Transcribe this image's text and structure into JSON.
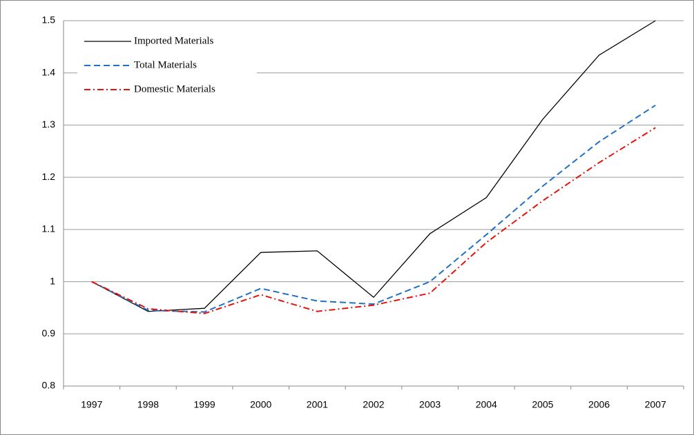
{
  "chart_data": {
    "type": "line",
    "categories": [
      "1997",
      "1998",
      "1999",
      "2000",
      "2001",
      "2002",
      "2003",
      "2004",
      "2005",
      "2006",
      "2007"
    ],
    "series": [
      {
        "name": "Imported Materials",
        "color": "#000000",
        "style": "solid",
        "values": [
          1.0,
          0.943,
          0.949,
          1.056,
          1.059,
          0.97,
          1.092,
          1.161,
          1.311,
          1.434,
          1.5
        ]
      },
      {
        "name": "Total Materials",
        "color": "#1f6fc5",
        "style": "dashed",
        "values": [
          1.0,
          0.945,
          0.942,
          0.987,
          0.963,
          0.957,
          1.0,
          1.09,
          1.183,
          1.268,
          1.338
        ]
      },
      {
        "name": "Domestic Materials",
        "color": "#e3120b",
        "style": "dashdot",
        "values": [
          1.0,
          0.948,
          0.939,
          0.975,
          0.943,
          0.955,
          0.978,
          1.075,
          1.155,
          1.228,
          1.295
        ]
      }
    ],
    "ylim": [
      0.8,
      1.5
    ],
    "yticks": [
      0.8,
      0.9,
      1,
      1.1,
      1.2,
      1.3,
      1.4,
      1.5
    ],
    "grid": true,
    "legend": "top-left"
  }
}
